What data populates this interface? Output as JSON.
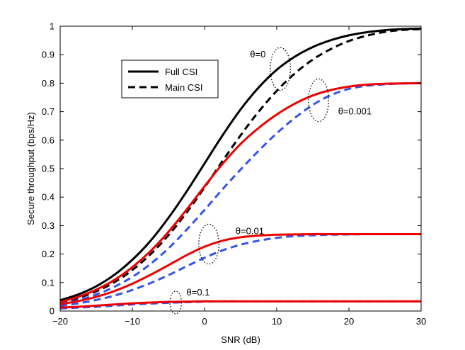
{
  "chart_data": {
    "type": "line",
    "title": "",
    "xlabel": "SNR (dB)",
    "ylabel": "Secure throughput (bps/Hz)",
    "xlim": [
      -20,
      30
    ],
    "ylim": [
      0,
      1
    ],
    "xticks": [
      -20,
      -10,
      0,
      10,
      20,
      30
    ],
    "yticks": [
      0,
      0.1,
      0.2,
      0.3,
      0.4,
      0.5,
      0.6,
      0.7,
      0.8,
      0.9,
      1
    ],
    "grid": false,
    "legend": {
      "placement": "upper-left",
      "entries": [
        {
          "label": "Full CSI",
          "style": "solid",
          "color": "#000000"
        },
        {
          "label": "Main CSI",
          "style": "dashed",
          "color": "#000000"
        }
      ]
    },
    "x": [
      -20,
      -17.5,
      -15,
      -12.5,
      -10,
      -7.5,
      -5,
      -2.5,
      0,
      2.5,
      5,
      7.5,
      10,
      12.5,
      15,
      17.5,
      20,
      22.5,
      25,
      27.5,
      30
    ],
    "series": [
      {
        "name": "Full CSI, θ=0",
        "group": "θ=0",
        "style": "solid",
        "color": "#000000",
        "values": [
          0.038,
          0.058,
          0.087,
          0.127,
          0.18,
          0.246,
          0.327,
          0.419,
          0.518,
          0.617,
          0.708,
          0.785,
          0.847,
          0.893,
          0.927,
          0.951,
          0.968,
          0.979,
          0.986,
          0.99,
          0.992
        ]
      },
      {
        "name": "Main CSI, θ=0",
        "group": "θ=0",
        "style": "dashed",
        "color": "#000000",
        "values": [
          0.03,
          0.046,
          0.069,
          0.101,
          0.144,
          0.199,
          0.266,
          0.345,
          0.434,
          0.527,
          0.617,
          0.7,
          0.773,
          0.834,
          0.883,
          0.92,
          0.948,
          0.967,
          0.98,
          0.987,
          0.99
        ]
      },
      {
        "name": "Full CSI, θ=0.001",
        "group": "θ=0.001",
        "style": "solid",
        "color": "#ee0000",
        "values": [
          0.032,
          0.05,
          0.075,
          0.109,
          0.154,
          0.21,
          0.278,
          0.356,
          0.438,
          0.517,
          0.587,
          0.643,
          0.69,
          0.728,
          0.757,
          0.776,
          0.788,
          0.795,
          0.798,
          0.799,
          0.8
        ]
      },
      {
        "name": "Main CSI, θ=0.001",
        "group": "θ=0.001",
        "style": "dashed",
        "color": "#3355ee",
        "values": [
          0.025,
          0.038,
          0.058,
          0.085,
          0.12,
          0.165,
          0.22,
          0.285,
          0.355,
          0.428,
          0.497,
          0.563,
          0.624,
          0.678,
          0.724,
          0.758,
          0.78,
          0.791,
          0.796,
          0.799,
          0.8
        ]
      },
      {
        "name": "Full CSI, θ=0.01",
        "group": "θ=0.01",
        "style": "solid",
        "color": "#ee0000",
        "values": [
          0.024,
          0.035,
          0.05,
          0.07,
          0.096,
          0.127,
          0.161,
          0.196,
          0.226,
          0.247,
          0.259,
          0.265,
          0.268,
          0.269,
          0.27,
          0.27,
          0.27,
          0.27,
          0.27,
          0.27,
          0.27
        ]
      },
      {
        "name": "Main CSI, θ=0.01",
        "group": "θ=0.01",
        "style": "dashed",
        "color": "#3355ee",
        "values": [
          0.018,
          0.027,
          0.039,
          0.054,
          0.074,
          0.098,
          0.126,
          0.157,
          0.187,
          0.213,
          0.233,
          0.247,
          0.257,
          0.263,
          0.266,
          0.268,
          0.269,
          0.27,
          0.27,
          0.27,
          0.27
        ]
      },
      {
        "name": "Full CSI, θ=0.1",
        "group": "θ=0.1",
        "style": "solid",
        "color": "#ee0000",
        "values": [
          0.012,
          0.015,
          0.019,
          0.023,
          0.027,
          0.03,
          0.032,
          0.033,
          0.034,
          0.034,
          0.034,
          0.034,
          0.034,
          0.034,
          0.034,
          0.034,
          0.034,
          0.034,
          0.034,
          0.034,
          0.034
        ]
      },
      {
        "name": "Main CSI, θ=0.1",
        "group": "θ=0.1",
        "style": "dashed",
        "color": "#3355ee",
        "values": [
          0.009,
          0.012,
          0.015,
          0.019,
          0.023,
          0.026,
          0.029,
          0.031,
          0.033,
          0.034,
          0.034,
          0.034,
          0.034,
          0.034,
          0.034,
          0.034,
          0.034,
          0.034,
          0.034,
          0.034,
          0.034
        ]
      }
    ],
    "annotations": [
      {
        "text": "θ=0",
        "x": 6.3,
        "y": 0.9,
        "ellipse": {
          "cx": 10.5,
          "cy": 0.85,
          "rx": 1.4,
          "ry": 0.075
        }
      },
      {
        "text": "θ=0.001",
        "x": 18.5,
        "y": 0.7,
        "ellipse": {
          "cx": 15.8,
          "cy": 0.74,
          "rx": 1.4,
          "ry": 0.075
        }
      },
      {
        "text": "θ=0.01",
        "x": 4.3,
        "y": 0.28,
        "ellipse": {
          "cx": 0.6,
          "cy": 0.235,
          "rx": 1.4,
          "ry": 0.07
        }
      },
      {
        "text": "θ=0.1",
        "x": -2.5,
        "y": 0.065,
        "ellipse": {
          "cx": -4.0,
          "cy": 0.03,
          "rx": 0.8,
          "ry": 0.04
        }
      }
    ]
  }
}
